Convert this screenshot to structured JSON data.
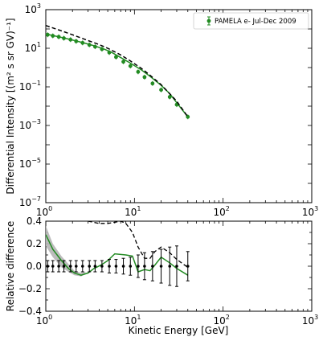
{
  "chart_data": [
    {
      "type": "line",
      "panel": "top",
      "x_scale": "log",
      "y_scale": "log",
      "xlim": [
        1,
        1000
      ],
      "ylim": [
        1e-07,
        1000
      ],
      "ylabel": "Differential Intensity [(m² s sr GV)⁻¹]",
      "x_ticks": [
        {
          "value": 1,
          "base": "10",
          "exp": "0"
        },
        {
          "value": 10,
          "base": "10",
          "exp": "1"
        },
        {
          "value": 100,
          "base": "10",
          "exp": "2"
        },
        {
          "value": 1000,
          "base": "10",
          "exp": "3"
        }
      ],
      "y_ticks": [
        {
          "value": 1e-07,
          "base": "10",
          "exp": "−7"
        },
        {
          "value": 1e-05,
          "base": "10",
          "exp": "−5"
        },
        {
          "value": 0.001,
          "base": "10",
          "exp": "−3"
        },
        {
          "value": 0.1,
          "base": "10",
          "exp": "−1"
        },
        {
          "value": 10,
          "base": "10",
          "exp": "1"
        },
        {
          "value": 1000,
          "base": "10",
          "exp": "3"
        }
      ],
      "legend": {
        "placement": "top-right",
        "label": "PAMELA e- Jul-Dec 2009"
      },
      "series": [
        {
          "name": "PAMELA e- Jul-Dec 2009",
          "style": "points-with-errorbars",
          "color": "#228b22",
          "x": [
            1.05,
            1.2,
            1.4,
            1.6,
            1.9,
            2.2,
            2.6,
            3.1,
            3.6,
            4.3,
            5.2,
            6.2,
            7.5,
            9.0,
            11,
            13,
            16,
            20,
            25,
            30,
            40
          ],
          "y": [
            50,
            44,
            39,
            33,
            28,
            23,
            19,
            15,
            12,
            9.0,
            6.0,
            3.5,
            2.0,
            1.2,
            0.6,
            0.32,
            0.15,
            0.07,
            0.03,
            0.012,
            0.0028
          ]
        },
        {
          "name": "",
          "style": "solid",
          "color": "#228b22",
          "x": [
            1.0,
            1.3,
            1.7,
            2.2,
            2.8,
            3.5,
            4.5,
            5.5,
            7.0,
            9.0,
            12,
            15,
            20,
            25,
            30,
            40
          ],
          "y": [
            55,
            42,
            32,
            24,
            18,
            13.5,
            9.2,
            6.2,
            3.3,
            1.7,
            0.75,
            0.35,
            0.12,
            0.045,
            0.015,
            0.0028
          ]
        },
        {
          "name": "",
          "style": "dashed",
          "color": "#000000",
          "x": [
            1.0,
            1.5,
            2.0,
            3.0,
            4.0,
            5.0,
            7.0,
            9.0,
            12,
            15,
            20,
            30,
            40
          ],
          "y": [
            150,
            80,
            50,
            25,
            15.5,
            10,
            4.5,
            2.2,
            0.9,
            0.4,
            0.13,
            0.018,
            0.0028
          ]
        }
      ]
    },
    {
      "type": "line",
      "panel": "bottom",
      "x_scale": "log",
      "xlim": [
        1,
        1000
      ],
      "ylim": [
        -0.4,
        0.4
      ],
      "xlabel": "Kinetic Energy [GeV]",
      "ylabel": "Relative difference",
      "x_ticks": [
        {
          "value": 1,
          "base": "10",
          "exp": "0"
        },
        {
          "value": 10,
          "base": "10",
          "exp": "1"
        },
        {
          "value": 100,
          "base": "10",
          "exp": "2"
        },
        {
          "value": 1000,
          "base": "10",
          "exp": "3"
        }
      ],
      "y_ticks": [
        {
          "value": -0.4,
          "label": "−0.4"
        },
        {
          "value": -0.2,
          "label": "−0.2"
        },
        {
          "value": 0.0,
          "label": "0.0"
        },
        {
          "value": 0.2,
          "label": "0.2"
        },
        {
          "value": 0.4,
          "label": "0.4"
        }
      ],
      "series": [
        {
          "name": "",
          "style": "points-with-errorbars",
          "color": "#000000",
          "x": [
            1.05,
            1.2,
            1.4,
            1.6,
            1.9,
            2.2,
            2.6,
            3.1,
            3.6,
            4.3,
            5.2,
            6.2,
            7.5,
            9.0,
            11,
            13,
            16,
            20,
            25,
            30,
            40
          ],
          "y": [
            0,
            0,
            0,
            0,
            0,
            0,
            0,
            0,
            0,
            0,
            0,
            0,
            0,
            0,
            0,
            0,
            0,
            0,
            0,
            0,
            0
          ],
          "err": [
            0.05,
            0.05,
            0.05,
            0.05,
            0.05,
            0.05,
            0.05,
            0.05,
            0.05,
            0.05,
            0.06,
            0.06,
            0.07,
            0.08,
            0.1,
            0.12,
            0.13,
            0.15,
            0.17,
            0.18,
            0.13
          ]
        },
        {
          "name": "",
          "style": "band",
          "color": "#b5b5b5",
          "x": [
            1.0,
            1.2,
            1.5,
            1.8,
            2.1,
            2.5,
            2.8
          ],
          "lower": [
            0.18,
            0.08,
            -0.01,
            -0.05,
            -0.08,
            -0.09,
            -0.07
          ],
          "upper": [
            0.36,
            0.2,
            0.09,
            0.02,
            -0.04,
            -0.06,
            -0.05
          ]
        },
        {
          "name": "",
          "style": "solid",
          "color": "#228b22",
          "x": [
            1.0,
            1.2,
            1.5,
            1.8,
            2.1,
            2.5,
            3.0,
            3.5,
            4.2,
            5.0,
            6.0,
            8.0,
            9.5,
            11,
            13,
            15,
            17,
            20,
            25,
            30,
            40
          ],
          "y": [
            0.28,
            0.15,
            0.05,
            -0.02,
            -0.06,
            -0.08,
            -0.06,
            -0.02,
            0.01,
            0.05,
            0.11,
            0.1,
            0.09,
            -0.05,
            -0.03,
            -0.04,
            0.01,
            0.08,
            0.03,
            -0.02,
            -0.08
          ]
        },
        {
          "name": "",
          "style": "dashed",
          "color": "#000000",
          "x": [
            3.0,
            4.0,
            5.0,
            6.0,
            7.0,
            8.0,
            9.5,
            11,
            13,
            15,
            17,
            20,
            25,
            30,
            40
          ],
          "y": [
            0.4,
            0.38,
            0.38,
            0.39,
            0.4,
            0.38,
            0.3,
            0.17,
            0.07,
            0.07,
            0.13,
            0.17,
            0.12,
            0.06,
            -0.01
          ]
        }
      ]
    }
  ]
}
